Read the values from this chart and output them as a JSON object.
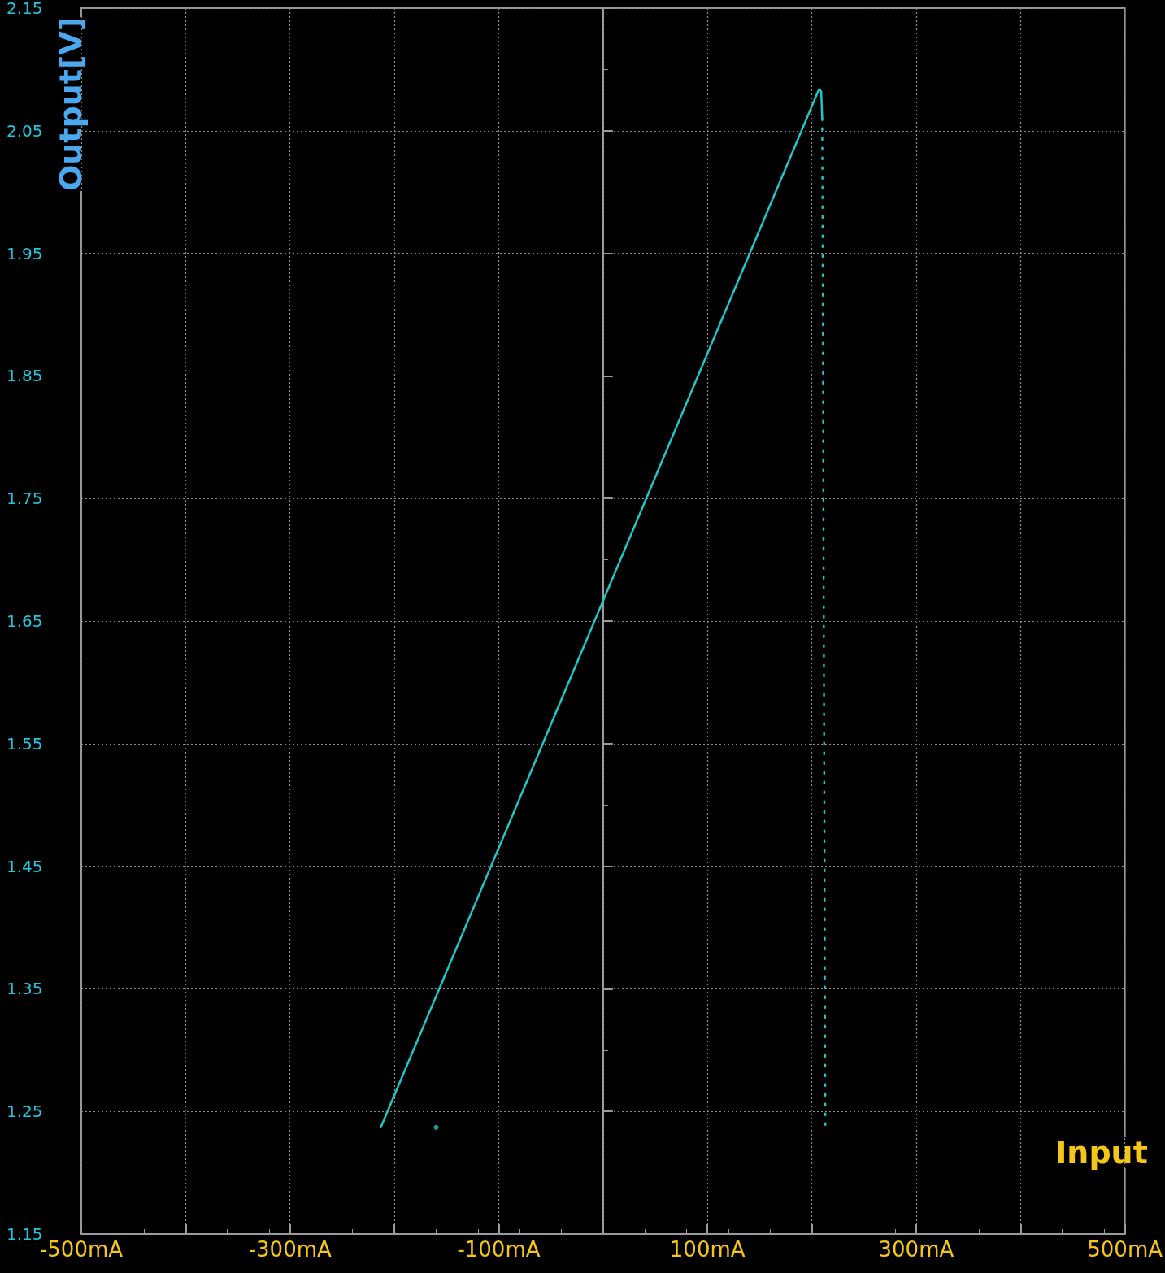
{
  "chart_data": {
    "type": "line",
    "xlabel": "Input",
    "ylabel": "Output[V]",
    "xlim": [
      -500,
      500
    ],
    "xticks": [
      {
        "value": -500,
        "label": "-500mA"
      },
      {
        "value": -400,
        "label": null
      },
      {
        "value": -300,
        "label": "-300mA"
      },
      {
        "value": -200,
        "label": null
      },
      {
        "value": -100,
        "label": "-100mA"
      },
      {
        "value": 0,
        "label": null
      },
      {
        "value": 100,
        "label": "100mA"
      },
      {
        "value": 200,
        "label": null
      },
      {
        "value": 300,
        "label": "300mA"
      },
      {
        "value": 400,
        "label": null
      },
      {
        "value": 500,
        "label": "500mA"
      }
    ],
    "ylim": [
      1.15,
      2.15
    ],
    "yticks": [
      1.15,
      1.25,
      1.35,
      1.45,
      1.55,
      1.65,
      1.75,
      1.85,
      1.95,
      2.05,
      2.15
    ],
    "grid": true,
    "marker": "none",
    "series": [
      {
        "color": "#1ec8c8",
        "line_style": "solid",
        "x": [
          -213,
          207,
          209,
          210
        ],
        "values": [
          1.237,
          2.084,
          2.082,
          2.06
        ]
      },
      {
        "color": "#1ec8c8",
        "line_style": "dotted",
        "x": [
          210,
          211,
          212,
          213
        ],
        "values": [
          2.06,
          1.8,
          1.5,
          1.237
        ]
      },
      {
        "type": "scatter",
        "color": "#1ec8c8",
        "marker": "circle",
        "x": [
          -160
        ],
        "values": [
          1.237
        ]
      }
    ]
  }
}
